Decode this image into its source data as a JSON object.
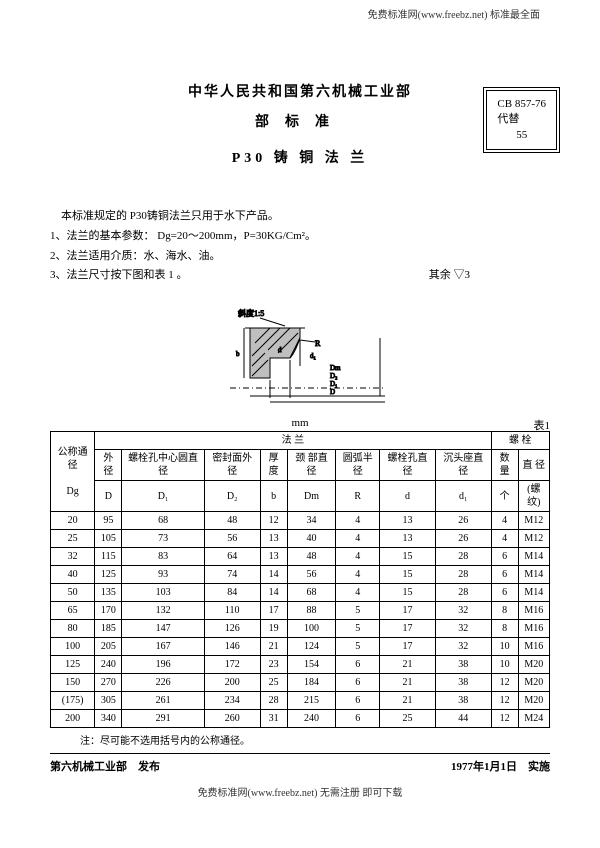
{
  "banners": {
    "top": "免费标准网(www.freebz.net) 标准最全面",
    "bottom": "免费标准网(www.freebz.net) 无需注册 即可下载"
  },
  "header": {
    "org": "中华人民共和国第六机械工业部",
    "subtitle": "部标准",
    "title": "P30 铸 铜 法 兰",
    "code1": "CB 857-76",
    "code2": "代替",
    "code3": "55"
  },
  "intro": {
    "line0": "本标准规定的 P30铸铜法兰只用于水下产品。",
    "line1": "1、法兰的基本参数：  Dg=20～200mm，P=30KG/Cm²。",
    "line2": "2、法兰适用介质：水、海水、油。",
    "line3_left": "3、法兰尺寸按下图和表 1 。",
    "line3_right": "其余 ▽3"
  },
  "diagram_labels": {
    "taper": "斜度1:5",
    "R": "R",
    "d": "d",
    "d1": "d₁",
    "Dm": "Dm",
    "D2": "D₂",
    "D1": "D₁",
    "D": "D",
    "b": "b"
  },
  "table_meta": {
    "unit": "mm",
    "caption": "表1",
    "group1": "法            兰",
    "group2": "螺     栓",
    "cols": {
      "c0a": "公称通径",
      "c0b": "Dg",
      "c1a": "外  径",
      "c1b": "D",
      "c2a": "螺栓孔中心圆直径",
      "c2b": "D₁",
      "c3a": "密封面外  径",
      "c3b": "D₂",
      "c4a": "厚  度",
      "c4b": "b",
      "c5a": "颈  部直  径",
      "c5b": "Dm",
      "c6a": "圆弧半径",
      "c6b": "R",
      "c7a": "螺栓孔直  径",
      "c7b": "d",
      "c8a": "沉头座直  径",
      "c8b": "d₁",
      "c9a": "数  量",
      "c9b": "个",
      "c10a": "直  径",
      "c10b": "(螺纹)"
    }
  },
  "rows": [
    [
      "20",
      "95",
      "68",
      "48",
      "12",
      "34",
      "4",
      "13",
      "26",
      "4",
      "M12"
    ],
    [
      "25",
      "105",
      "73",
      "56",
      "13",
      "40",
      "4",
      "13",
      "26",
      "4",
      "M12"
    ],
    [
      "32",
      "115",
      "83",
      "64",
      "13",
      "48",
      "4",
      "15",
      "28",
      "6",
      "M14"
    ],
    [
      "40",
      "125",
      "93",
      "74",
      "14",
      "56",
      "4",
      "15",
      "28",
      "6",
      "M14"
    ],
    [
      "50",
      "135",
      "103",
      "84",
      "14",
      "68",
      "4",
      "15",
      "28",
      "6",
      "M14"
    ],
    [
      "65",
      "170",
      "132",
      "110",
      "17",
      "88",
      "5",
      "17",
      "32",
      "8",
      "M16"
    ],
    [
      "80",
      "185",
      "147",
      "126",
      "19",
      "100",
      "5",
      "17",
      "32",
      "8",
      "M16"
    ],
    [
      "100",
      "205",
      "167",
      "146",
      "21",
      "124",
      "5",
      "17",
      "32",
      "10",
      "M16"
    ],
    [
      "125",
      "240",
      "196",
      "172",
      "23",
      "154",
      "6",
      "21",
      "38",
      "10",
      "M20"
    ],
    [
      "150",
      "270",
      "226",
      "200",
      "25",
      "184",
      "6",
      "21",
      "38",
      "12",
      "M20"
    ],
    [
      "(175)",
      "305",
      "261",
      "234",
      "28",
      "215",
      "6",
      "21",
      "38",
      "12",
      "M20"
    ],
    [
      "200",
      "340",
      "291",
      "260",
      "31",
      "240",
      "6",
      "25",
      "44",
      "12",
      "M24"
    ]
  ],
  "note": "注：尽可能不选用括号内的公称通径。",
  "footer": {
    "left1": "第六机械工业部",
    "left2": "发布",
    "right1": "1977年1月1日",
    "right2": "实施"
  }
}
